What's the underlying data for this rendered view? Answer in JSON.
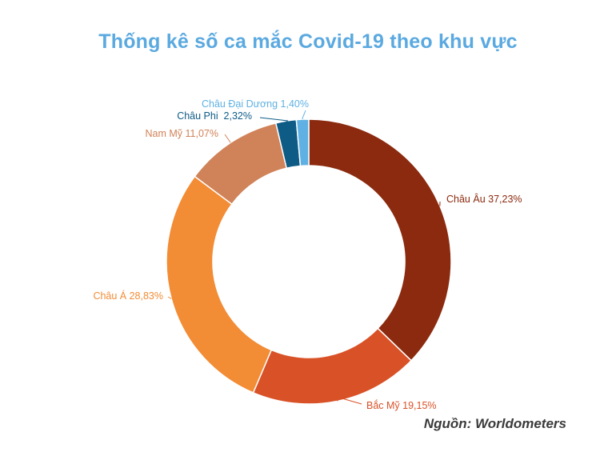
{
  "title": "Thống kê số ca mắc Covid-19 theo khu vực",
  "source": "Nguồn: Worldometers",
  "chart_data": {
    "type": "pie",
    "donut": true,
    "title": "Thống kê số ca mắc Covid-19 theo khu vực",
    "legend": "none",
    "slices": [
      {
        "label": "Châu Âu 37,23%",
        "value": 37.23,
        "color": "#8b2a0e"
      },
      {
        "label": "Bắc Mỹ 19,15%",
        "value": 19.15,
        "color": "#d95127"
      },
      {
        "label": "Châu Á 28,83%",
        "value": 28.83,
        "color": "#f28c35"
      },
      {
        "label": "Nam Mỹ 11,07%",
        "value": 11.07,
        "color": "#d08258"
      },
      {
        "label": "Châu Phi  2,32%",
        "value": 2.32,
        "color": "#0e5b86"
      },
      {
        "label": "Châu Đại Dương 1,40%",
        "value": 1.4,
        "color": "#5fb1e3"
      }
    ]
  }
}
